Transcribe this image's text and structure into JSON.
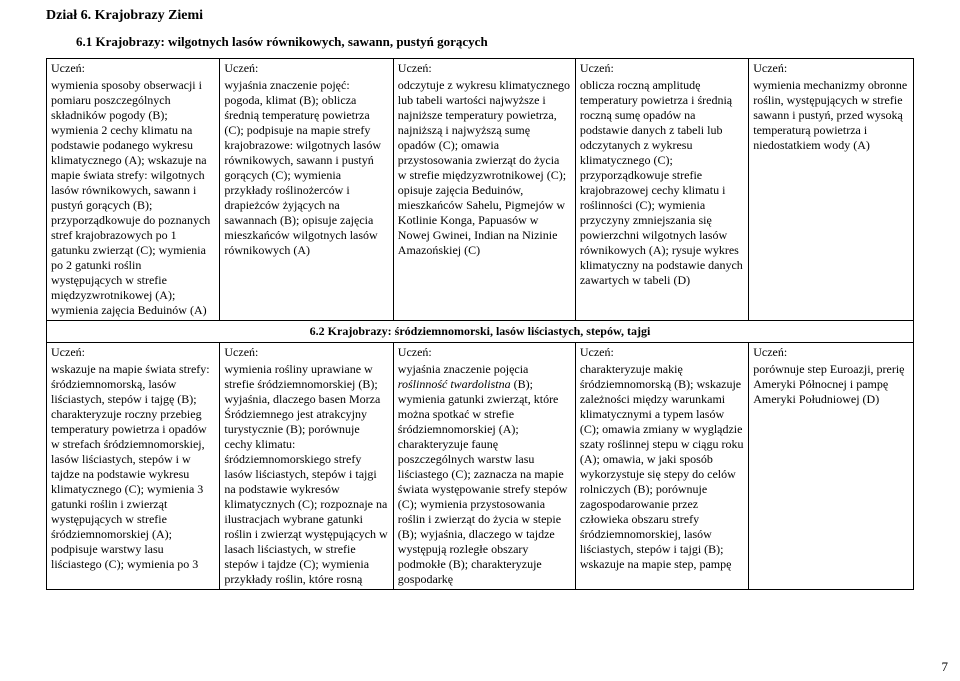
{
  "section_title": "Dział 6. Krajobrazy Ziemi",
  "sub1": {
    "title": "6.1 Krajobrazy: wilgotnych lasów równikowych, sawann, pustyń gorących",
    "label": "Uczeń:",
    "cells": [
      "wymienia sposoby obserwacji i pomiaru poszczególnych składników pogody (B); wymienia 2 cechy klimatu na podstawie podanego wykresu klimatycznego (A); wskazuje na mapie świata strefy: wilgotnych lasów równikowych, sawann i pustyń gorących (B); przyporządkowuje do poznanych stref krajobrazowych po 1 gatunku zwierząt (C); wymienia po 2 gatunki roślin występujących w strefie międzyzwrotnikowej (A); wymienia zajęcia Beduinów (A)",
      "wyjaśnia znaczenie pojęć: pogoda, klimat (B); oblicza średnią temperaturę powietrza (C); podpisuje na mapie strefy krajobrazowe: wilgotnych lasów równikowych, sawann i pustyń gorących (C); wymienia przykłady roślinożerców i drapieżców żyjących na sawannach (B); opisuje zajęcia mieszkańców wilgotnych lasów równikowych (A)",
      "odczytuje z wykresu klimatycznego lub tabeli wartości najwyższe i najniższe temperatury powietrza, najniższą i najwyższą sumę opadów (C); omawia przystosowania zwierząt do życia w strefie międzyzwrotnikowej (C); opisuje zajęcia Beduinów, mieszkańców Sahelu, Pigmejów w Kotlinie Konga, Papuasów w Nowej Gwinei, Indian na Nizinie Amazońskiej (C)",
      "oblicza roczną amplitudę temperatury powietrza i średnią roczną sumę opadów na podstawie danych z tabeli lub odczytanych z wykresu klimatycznego (C); przyporządkowuje strefie krajobrazowej cechy klimatu i roślinności (C); wymienia przyczyny zmniejszania się powierzchni wilgotnych lasów równikowych (A); rysuje wykres klimatyczny na podstawie danych zawartych w tabeli (D)",
      "wymienia mechanizmy obronne roślin, występujących w strefie sawann i pustyń, przed wysoką temperaturą powietrza i niedostatkiem wody (A)"
    ]
  },
  "sub2": {
    "title": "6.2 Krajobrazy: śródziemnomorski, lasów liściastych, stepów, tajgi",
    "label": "Uczeń:",
    "cells_html": [
      "wskazuje na mapie świata strefy: śródziemnomorską, lasów liściastych, stepów i tajgę (B); charakteryzuje roczny przebieg temperatury powietrza i opadów w strefach śródziemnomorskiej, lasów liściastych, stepów i w tajdze na podstawie wykresu klimatycznego (C); wymienia 3 gatunki roślin i zwierząt występujących w strefie śródziemnomorskiej (A); podpisuje warstwy lasu liściastego (C); wymienia po 3",
      "wymienia rośliny uprawiane w strefie śródziemnomorskiej (B); wyjaśnia, dlaczego basen Morza Śródziemnego jest atrakcyjny turystycznie (B); porównuje cechy klimatu: śródziemnomorskiego strefy lasów liściastych, stepów i tajgi na podstawie wykresów klimatycznych (C); rozpoznaje na ilustracjach wybrane gatunki roślin i zwierząt występujących w lasach liściastych, w strefie stepów i tajdze (C); wymienia przykłady roślin, które rosną",
      "wyjaśnia znaczenie pojęcia <span class=\"italic\">roślinność twardolistna</span> (B); wymienia gatunki zwierząt, które można spotkać w strefie śródziemnomorskiej (A); charakteryzuje faunę poszczególnych warstw lasu liściastego (C); zaznacza na mapie świata występowanie strefy stepów (C); wymienia przystosowania roślin i zwierząt do życia w stepie (B); wyjaśnia, dlaczego w tajdze występują rozległe obszary podmokłe (B); charakteryzuje gospodarkę",
      "charakteryzuje makię śródziemnomorską (B); wskazuje zależności między warunkami klimatycznymi a typem lasów (C); omawia zmiany w wyglądzie szaty roślinnej  stepu w ciągu roku (A); omawia, w jaki sposób wykorzystuje się stepy do celów rolniczych (B); porównuje zagospodarowanie przez człowieka obszaru strefy śródziemnomorskiej, lasów liściastych, stepów i tajgi (B); wskazuje na mapie step, pampę",
      "porównuje step Euroazji, prerię Ameryki Północnej i pampę Ameryki Południowej (D)"
    ]
  },
  "page_number": "7"
}
